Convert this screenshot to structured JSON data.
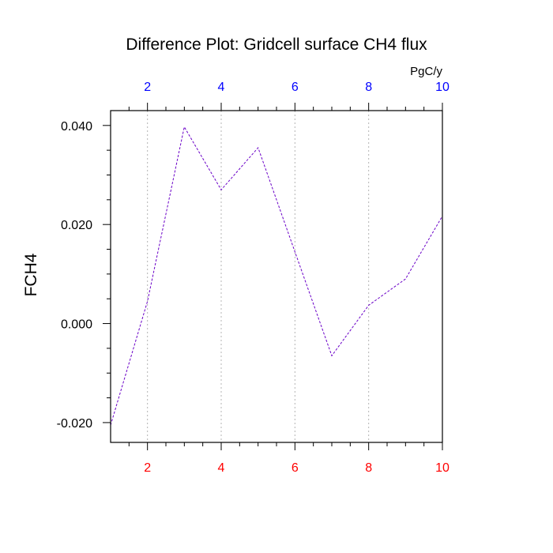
{
  "chart_data": {
    "type": "line",
    "title": "Difference Plot: Gridcell surface CH4 flux",
    "units_label": "PgC/y",
    "ylabel": "FCH4",
    "xlim": [
      1,
      10
    ],
    "ylim": [
      -0.024,
      0.043
    ],
    "x_major_ticks": [
      2,
      4,
      6,
      8,
      10
    ],
    "x_minor_ticks": [
      1.5,
      2.5,
      3,
      3.5,
      4.5,
      5,
      5.5,
      6.5,
      7,
      7.5,
      8.5,
      9,
      9.5
    ],
    "x_tick_labels_bottom": [
      "2",
      "4",
      "6",
      "8",
      "10"
    ],
    "x_tick_labels_top": [
      "2",
      "4",
      "6",
      "8",
      "10"
    ],
    "y_major_ticks": [
      -0.02,
      0.0,
      0.02,
      0.04
    ],
    "y_minor_ticks": [
      -0.015,
      -0.01,
      -0.005,
      0.005,
      0.01,
      0.015,
      0.025,
      0.03,
      0.035
    ],
    "y_tick_labels": [
      "-0.020",
      "0.000",
      "0.020",
      "0.040"
    ],
    "grid": "vertical dashed at major x ticks",
    "series": [
      {
        "x": [
          1,
          2,
          3,
          4,
          5,
          6,
          7,
          8,
          9,
          10
        ],
        "y": [
          -0.0205,
          0.0045,
          0.0397,
          0.027,
          0.0355,
          0.0145,
          -0.0065,
          0.0037,
          0.009,
          0.0217
        ],
        "color": "#6a00c8"
      }
    ],
    "colors": {
      "top_axis_labels": "#0000ff",
      "bottom_axis_labels": "#ff0000",
      "left_axis_labels": "#000000"
    }
  }
}
